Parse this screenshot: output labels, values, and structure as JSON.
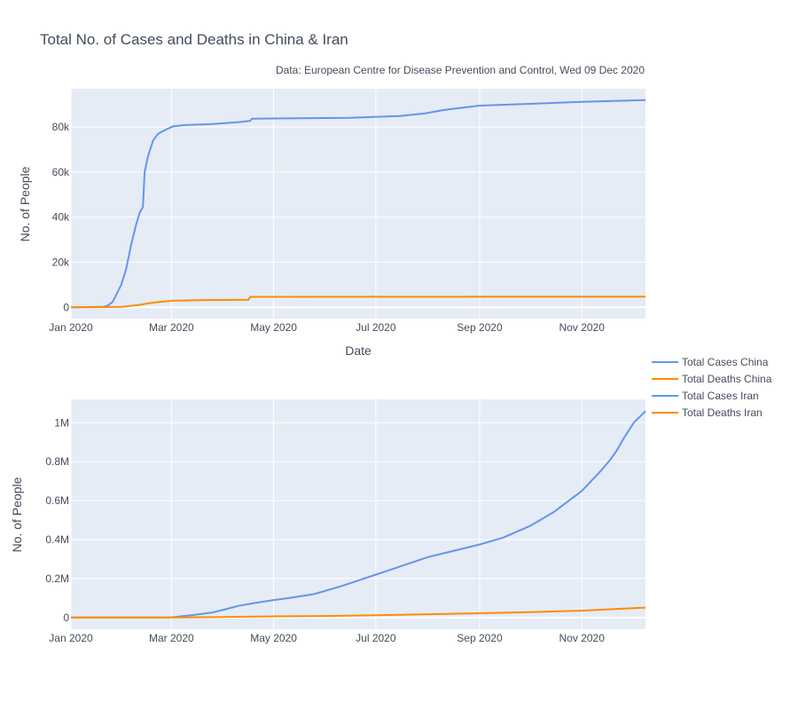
{
  "chart_data": {
    "type": "line",
    "title": "Total No. of Cases and Deaths in China & Iran",
    "subtitle": "Data: European Centre for Disease Prevention and Control, Wed 09 Dec 2020",
    "legend_position": "right",
    "legend": [
      "Total Cases China",
      "Total Deaths China",
      "Total Cases Iran",
      "Total Deaths Iran"
    ],
    "colors": {
      "cases": "#6495ed",
      "deaths": "#ff8c00"
    },
    "x_ticks": [
      "2020-01-01",
      "2020-03-01",
      "2020-05-01",
      "2020-07-01",
      "2020-09-01",
      "2020-11-01"
    ],
    "x_tick_labels": [
      "Jan 2020",
      "Mar 2020",
      "May 2020",
      "Jul 2020",
      "Sep 2020",
      "Nov 2020"
    ],
    "xlim": [
      "2020-01-01",
      "2020-12-09"
    ],
    "panels": [
      {
        "id": "china",
        "xlabel": "Date",
        "ylabel": "No. of People",
        "ylim": [
          -5000,
          97000
        ],
        "y_ticks": [
          0,
          20000,
          40000,
          60000,
          80000
        ],
        "y_tick_labels": [
          "0",
          "20k",
          "40k",
          "60k",
          "80k"
        ],
        "series": [
          {
            "name": "Total Cases China",
            "color": "#6495ed",
            "points": [
              [
                "2020-01-01",
                0
              ],
              [
                "2020-01-20",
                200
              ],
              [
                "2020-01-23",
                800
              ],
              [
                "2020-01-26",
                2500
              ],
              [
                "2020-01-28",
                5500
              ],
              [
                "2020-01-31",
                10000
              ],
              [
                "2020-02-03",
                17000
              ],
              [
                "2020-02-06",
                28000
              ],
              [
                "2020-02-09",
                37000
              ],
              [
                "2020-02-11",
                42000
              ],
              [
                "2020-02-13",
                44600
              ],
              [
                "2020-02-14",
                60000
              ],
              [
                "2020-02-16",
                67000
              ],
              [
                "2020-02-19",
                74000
              ],
              [
                "2020-02-22",
                77000
              ],
              [
                "2020-02-27",
                79000
              ],
              [
                "2020-03-02",
                80300
              ],
              [
                "2020-03-09",
                80900
              ],
              [
                "2020-03-25",
                81300
              ],
              [
                "2020-04-10",
                82200
              ],
              [
                "2020-04-17",
                82700
              ],
              [
                "2020-04-18",
                83700
              ],
              [
                "2020-05-15",
                83900
              ],
              [
                "2020-06-15",
                84100
              ],
              [
                "2020-07-15",
                84900
              ],
              [
                "2020-07-30",
                86000
              ],
              [
                "2020-08-10",
                87500
              ],
              [
                "2020-08-15",
                88000
              ],
              [
                "2020-09-01",
                89500
              ],
              [
                "2020-10-01",
                90300
              ],
              [
                "2020-11-01",
                91200
              ],
              [
                "2020-12-09",
                92000
              ]
            ]
          },
          {
            "name": "Total Deaths China",
            "color": "#ff8c00",
            "points": [
              [
                "2020-01-01",
                0
              ],
              [
                "2020-01-31",
                200
              ],
              [
                "2020-02-10",
                1000
              ],
              [
                "2020-02-14",
                1500
              ],
              [
                "2020-02-20",
                2200
              ],
              [
                "2020-03-01",
                2900
              ],
              [
                "2020-03-20",
                3250
              ],
              [
                "2020-04-16",
                3350
              ],
              [
                "2020-04-17",
                4630
              ],
              [
                "2020-12-09",
                4750
              ]
            ]
          }
        ]
      },
      {
        "id": "iran",
        "xlabel": "",
        "ylabel": "No. of People",
        "ylim": [
          -60000,
          1120000
        ],
        "y_ticks": [
          0,
          200000,
          400000,
          600000,
          800000,
          1000000
        ],
        "y_tick_labels": [
          "0",
          "0.2M",
          "0.4M",
          "0.6M",
          "0.8M",
          "1M"
        ],
        "series": [
          {
            "name": "Total Cases Iran",
            "color": "#6495ed",
            "points": [
              [
                "2020-01-01",
                0
              ],
              [
                "2020-02-19",
                0
              ],
              [
                "2020-03-01",
                1000
              ],
              [
                "2020-03-15",
                14000
              ],
              [
                "2020-03-25",
                25000
              ],
              [
                "2020-04-01",
                40000
              ],
              [
                "2020-04-10",
                60000
              ],
              [
                "2020-04-20",
                75000
              ],
              [
                "2020-05-01",
                90000
              ],
              [
                "2020-05-10",
                100000
              ],
              [
                "2020-05-25",
                120000
              ],
              [
                "2020-06-10",
                160000
              ],
              [
                "2020-07-01",
                220000
              ],
              [
                "2020-08-01",
                310000
              ],
              [
                "2020-09-01",
                375000
              ],
              [
                "2020-09-15",
                410000
              ],
              [
                "2020-10-01",
                470000
              ],
              [
                "2020-10-15",
                540000
              ],
              [
                "2020-11-01",
                650000
              ],
              [
                "2020-11-12",
                750000
              ],
              [
                "2020-11-18",
                810000
              ],
              [
                "2020-11-22",
                860000
              ],
              [
                "2020-11-26",
                920000
              ],
              [
                "2020-12-02",
                1000000
              ],
              [
                "2020-12-09",
                1060000
              ]
            ]
          },
          {
            "name": "Total Deaths Iran",
            "color": "#ff8c00",
            "points": [
              [
                "2020-01-01",
                0
              ],
              [
                "2020-03-01",
                100
              ],
              [
                "2020-04-01",
                3000
              ],
              [
                "2020-05-01",
                6000
              ],
              [
                "2020-06-01",
                8000
              ],
              [
                "2020-07-01",
                12000
              ],
              [
                "2020-08-01",
                17000
              ],
              [
                "2020-09-01",
                22000
              ],
              [
                "2020-10-01",
                28000
              ],
              [
                "2020-11-01",
                35000
              ],
              [
                "2020-11-15",
                41000
              ],
              [
                "2020-12-09",
                51000
              ]
            ]
          }
        ]
      }
    ]
  }
}
